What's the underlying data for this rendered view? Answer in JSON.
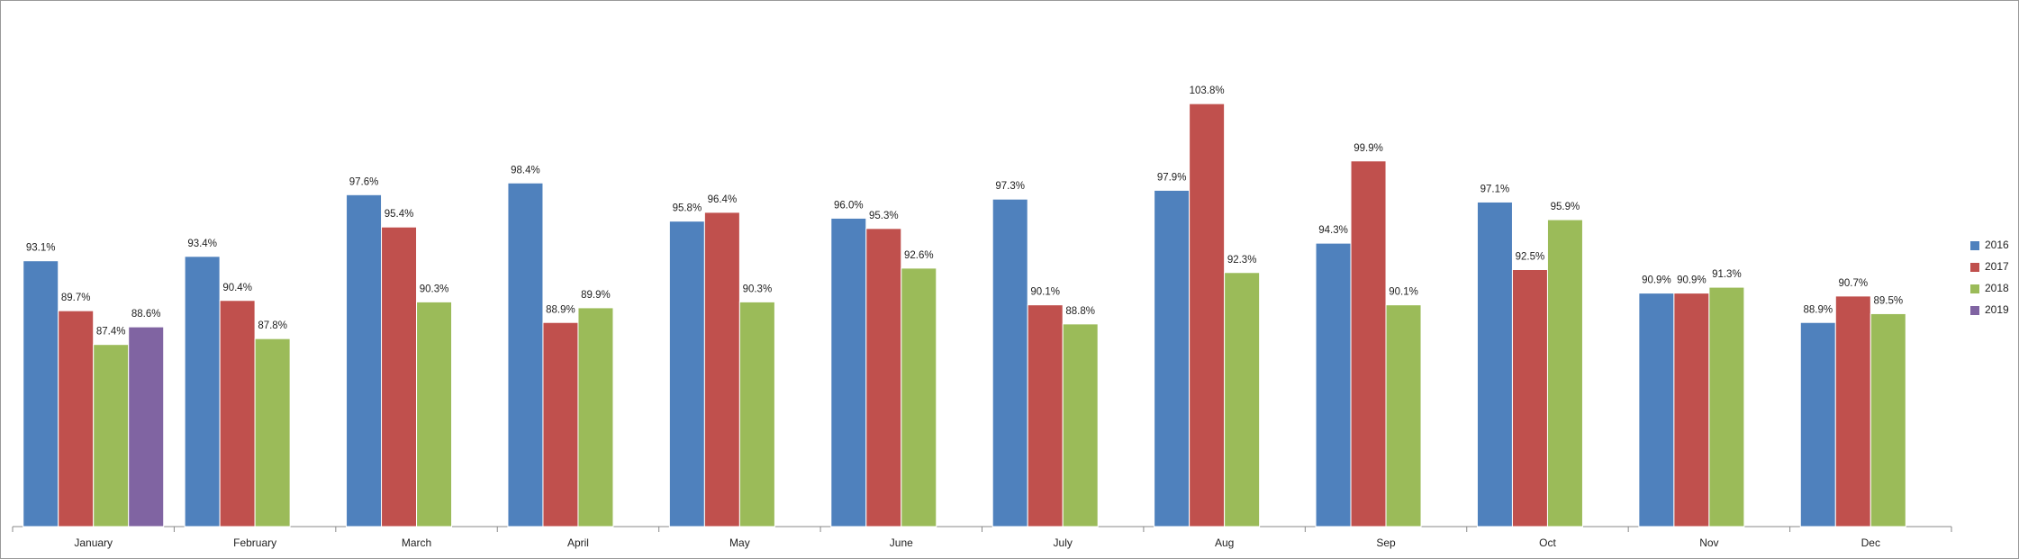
{
  "chart_data": {
    "type": "bar",
    "categories": [
      "January",
      "February",
      "March",
      "April",
      "May",
      "June",
      "July",
      "Aug",
      "Sep",
      "Oct",
      "Nov",
      "Dec"
    ],
    "series": [
      {
        "name": "2016",
        "color": "#4f81bd",
        "values": [
          93.1,
          93.4,
          97.6,
          98.4,
          95.8,
          96.0,
          97.3,
          97.9,
          94.3,
          97.1,
          90.9,
          88.9
        ],
        "value_labels": [
          "93.1%",
          "93.4%",
          "97.6%",
          "98.4%",
          "95.8%",
          "96.0%",
          "97.3%",
          "97.9%",
          "94.3%",
          "97.1%",
          "90.9%",
          "88.9%"
        ]
      },
      {
        "name": "2017",
        "color": "#c0504d",
        "values": [
          89.7,
          90.4,
          95.4,
          88.9,
          96.4,
          95.3,
          90.1,
          103.8,
          99.9,
          92.5,
          90.9,
          90.7
        ],
        "value_labels": [
          "89.7%",
          "90.4%",
          "95.4%",
          "88.9%",
          "96.4%",
          "95.3%",
          "90.1%",
          "103.8%",
          "99.9%",
          "92.5%",
          "90.9%",
          "90.7%"
        ]
      },
      {
        "name": "2018",
        "color": "#9bbb59",
        "values": [
          87.4,
          87.8,
          90.3,
          89.9,
          90.3,
          92.6,
          88.8,
          92.3,
          90.1,
          95.9,
          91.3,
          89.5
        ],
        "value_labels": [
          "87.4%",
          "87.8%",
          "90.3%",
          "89.9%",
          "90.3%",
          "92.6%",
          "88.8%",
          "92.3%",
          "90.1%",
          "95.9%",
          "91.3%",
          "89.5%"
        ]
      },
      {
        "name": "2019",
        "color": "#8064a2",
        "values": [
          88.6,
          null,
          null,
          null,
          null,
          null,
          null,
          null,
          null,
          null,
          null,
          null
        ],
        "value_labels": [
          "88.6%",
          null,
          null,
          null,
          null,
          null,
          null,
          null,
          null,
          null,
          null,
          null
        ]
      }
    ],
    "ylim": [
      75,
      110
    ],
    "grid": false,
    "legend": "right"
  }
}
